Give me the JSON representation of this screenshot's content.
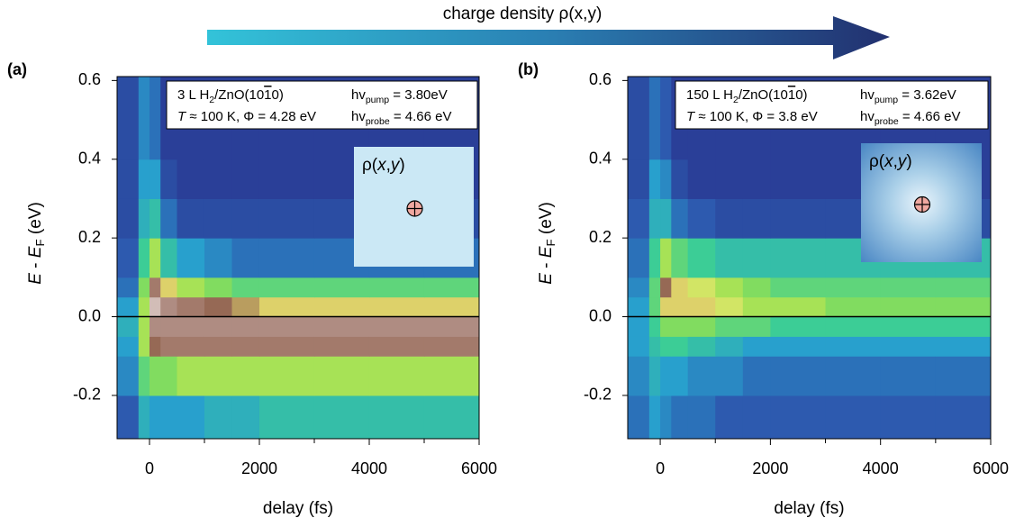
{
  "arrow_label": "charge density ρ(x,y)",
  "chart_data": [
    {
      "type": "heatmap",
      "label": "(a)",
      "xlabel": "delay (fs)",
      "ylabel": [
        "E",
        " - ",
        "E",
        "F",
        " (eV)"
      ],
      "sample": [
        "3 L H",
        "2",
        "/ZnO(10",
        "1",
        "0)"
      ],
      "conditions": [
        "T",
        " ≈ 100 K, Φ = 4.28 eV"
      ],
      "pump": [
        "hv",
        "pump",
        " = 3.80eV"
      ],
      "probe": [
        "hv",
        "probe",
        " = 4.66 eV"
      ],
      "inset_label": [
        "ρ(",
        "x",
        ",",
        "y",
        ")"
      ],
      "xlim": [
        -590,
        6000
      ],
      "ylim": [
        -0.31,
        0.61
      ],
      "xticks": [
        0,
        2000,
        4000,
        6000
      ],
      "xminorticks": [
        1000,
        3000,
        5000
      ],
      "yticks": [
        -0.2,
        {
          "value": 0,
          "label": "0.0"
        },
        0.2,
        0.4,
        0.6
      ],
      "x_bins": [
        -590,
        -200,
        0,
        200,
        500,
        1000,
        1500,
        2000,
        3000,
        4000,
        5000,
        6000
      ],
      "y_bins": [
        -0.31,
        -0.2,
        -0.1,
        -0.05,
        0,
        0.05,
        0.1,
        0.2,
        0.3,
        0.4,
        0.61
      ],
      "z": [
        [
          0.15,
          0.35,
          0.3,
          0.3,
          0.3,
          0.35,
          0.35,
          0.4,
          0.4,
          0.4,
          0.4
        ],
        [
          0.25,
          0.5,
          0.55,
          0.55,
          0.6,
          0.6,
          0.6,
          0.6,
          0.6,
          0.6,
          0.6
        ],
        [
          0.3,
          0.6,
          0.8,
          0.85,
          0.85,
          0.85,
          0.85,
          0.85,
          0.85,
          0.85,
          0.85
        ],
        [
          0.35,
          0.6,
          0.9,
          0.9,
          0.9,
          0.9,
          0.9,
          0.9,
          0.9,
          0.9,
          0.9
        ],
        [
          0.3,
          0.6,
          0.95,
          0.9,
          0.85,
          0.8,
          0.75,
          0.7,
          0.7,
          0.7,
          0.7
        ],
        [
          0.2,
          0.55,
          0.85,
          0.7,
          0.6,
          0.55,
          0.5,
          0.5,
          0.5,
          0.5,
          0.5
        ],
        [
          0.15,
          0.45,
          0.6,
          0.4,
          0.3,
          0.25,
          0.2,
          0.2,
          0.2,
          0.2,
          0.2
        ],
        [
          0.1,
          0.35,
          0.4,
          0.2,
          0.1,
          0.1,
          0.1,
          0.1,
          0.1,
          0.1,
          0.1
        ],
        [
          0.1,
          0.3,
          0.3,
          0.1,
          0.05,
          0.05,
          0.05,
          0.05,
          0.05,
          0.05,
          0.05
        ],
        [
          0.1,
          0.25,
          0.2,
          0.05,
          0.05,
          0.05,
          0.05,
          0.05,
          0.05,
          0.05,
          0.05
        ]
      ]
    },
    {
      "type": "heatmap",
      "label": "(b)",
      "xlabel": "delay (fs)",
      "ylabel": [
        "E",
        " - ",
        "E",
        "F",
        " (eV)"
      ],
      "sample": [
        "150 L H",
        "2",
        "/ZnO(10",
        "1",
        "0)"
      ],
      "conditions": [
        "T",
        " ≈ 100 K, Φ = 3.8 eV"
      ],
      "pump": [
        "hv",
        "pump",
        " = 3.62eV"
      ],
      "probe": [
        "hv",
        "probe",
        " = 4.66 eV"
      ],
      "inset_label": [
        "ρ(",
        "x",
        ",",
        "y",
        ")"
      ],
      "xlim": [
        -590,
        6000
      ],
      "ylim": [
        -0.31,
        0.61
      ],
      "xticks": [
        0,
        2000,
        4000,
        6000
      ],
      "xminorticks": [
        1000,
        3000,
        5000
      ],
      "yticks": [
        -0.2,
        {
          "value": 0,
          "label": "0.0"
        },
        0.2,
        0.4,
        0.6
      ],
      "x_bins": [
        -590,
        -200,
        0,
        200,
        500,
        1000,
        1500,
        2000,
        3000,
        4000,
        5000,
        6000
      ],
      "y_bins": [
        -0.31,
        -0.2,
        -0.1,
        -0.05,
        0,
        0.05,
        0.1,
        0.2,
        0.3,
        0.4,
        0.61
      ],
      "z": [
        [
          0.2,
          0.3,
          0.25,
          0.2,
          0.2,
          0.15,
          0.15,
          0.15,
          0.15,
          0.15,
          0.15
        ],
        [
          0.25,
          0.35,
          0.3,
          0.3,
          0.25,
          0.25,
          0.2,
          0.2,
          0.2,
          0.2,
          0.2
        ],
        [
          0.3,
          0.4,
          0.45,
          0.45,
          0.4,
          0.35,
          0.3,
          0.3,
          0.3,
          0.3,
          0.3
        ],
        [
          0.3,
          0.45,
          0.55,
          0.55,
          0.55,
          0.5,
          0.5,
          0.45,
          0.45,
          0.45,
          0.45
        ],
        [
          0.3,
          0.5,
          0.7,
          0.7,
          0.7,
          0.65,
          0.6,
          0.6,
          0.55,
          0.55,
          0.55
        ],
        [
          0.25,
          0.5,
          0.8,
          0.7,
          0.65,
          0.6,
          0.55,
          0.5,
          0.5,
          0.5,
          0.5
        ],
        [
          0.2,
          0.45,
          0.6,
          0.5,
          0.45,
          0.4,
          0.4,
          0.4,
          0.4,
          0.4,
          0.4
        ],
        [
          0.15,
          0.35,
          0.35,
          0.2,
          0.15,
          0.1,
          0.1,
          0.1,
          0.1,
          0.1,
          0.1
        ],
        [
          0.1,
          0.3,
          0.25,
          0.1,
          0.05,
          0.05,
          0.05,
          0.05,
          0.05,
          0.05,
          0.05
        ],
        [
          0.1,
          0.2,
          0.15,
          0.05,
          0.05,
          0.05,
          0.05,
          0.05,
          0.05,
          0.05,
          0.05
        ]
      ]
    }
  ]
}
